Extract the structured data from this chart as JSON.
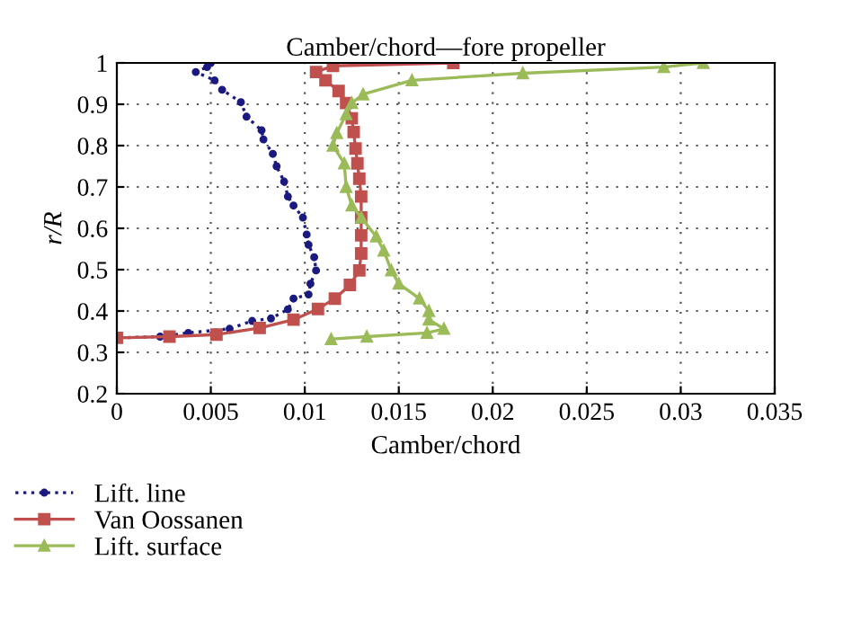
{
  "chart_data": {
    "type": "line",
    "title": "Camber/chord—fore propeller",
    "xlabel": "Camber/chord",
    "ylabel": "r/R",
    "xlim": [
      0,
      0.035
    ],
    "ylim": [
      0.2,
      1
    ],
    "xticks": [
      0,
      0.005,
      0.01,
      0.015,
      0.02,
      0.025,
      0.03,
      0.035
    ],
    "yticks": [
      0.2,
      0.3,
      0.4,
      0.5,
      0.6,
      0.7,
      0.8,
      0.9,
      1
    ],
    "grid": true,
    "legend": "bottom left",
    "series": [
      {
        "name": "Lift. line",
        "color": "#1a1a80",
        "marker": "circle",
        "line_style": "dotted",
        "x": [
          0.005,
          0.0048,
          0.0042,
          0.0052,
          0.0056,
          0.0066,
          0.0069,
          0.0077,
          0.0078,
          0.0083,
          0.0085,
          0.0089,
          0.0091,
          0.0094,
          0.0099,
          0.0101,
          0.0102,
          0.0105,
          0.0106,
          0.0103,
          0.0102,
          0.0094,
          0.0091,
          0.0082,
          0.0072,
          0.006,
          0.0038,
          0.0023,
          0
        ],
        "values": [
          1,
          0.99,
          0.978,
          0.958,
          0.935,
          0.905,
          0.87,
          0.837,
          0.815,
          0.78,
          0.75,
          0.713,
          0.677,
          0.655,
          0.626,
          0.585,
          0.56,
          0.53,
          0.498,
          0.466,
          0.44,
          0.43,
          0.404,
          0.382,
          0.376,
          0.357,
          0.347,
          0.338,
          0.335
        ]
      },
      {
        "name": "Van Oossanen",
        "color": "#c0504d",
        "marker": "square",
        "line_style": "solid",
        "x": [
          0.0179,
          0.0115,
          0.0106,
          0.0111,
          0.0118,
          0.0122,
          0.0125,
          0.0126,
          0.0127,
          0.0128,
          0.0129,
          0.013,
          0.013,
          0.013,
          0.013,
          0.0129,
          0.0124,
          0.0116,
          0.0107,
          0.0094,
          0.0076,
          0.0053,
          0.0028,
          0
        ],
        "values": [
          1,
          0.993,
          0.978,
          0.958,
          0.932,
          0.903,
          0.866,
          0.833,
          0.793,
          0.757,
          0.72,
          0.677,
          0.626,
          0.583,
          0.539,
          0.498,
          0.463,
          0.43,
          0.405,
          0.379,
          0.359,
          0.343,
          0.338,
          0.335
        ]
      },
      {
        "name": "Lift. surface",
        "color": "#9bbb59",
        "marker": "triangle",
        "line_style": "solid",
        "x": [
          0.0312,
          0.0291,
          0.0216,
          0.0157,
          0.0131,
          0.0125,
          0.0122,
          0.0117,
          0.0115,
          0.0121,
          0.0122,
          0.0125,
          0.013,
          0.0138,
          0.0142,
          0.0146,
          0.015,
          0.0161,
          0.0166,
          0.0166,
          0.0174,
          0.0165,
          0.0133,
          0.0114
        ],
        "values": [
          1,
          0.99,
          0.975,
          0.958,
          0.924,
          0.903,
          0.876,
          0.83,
          0.8,
          0.757,
          0.7,
          0.655,
          0.626,
          0.58,
          0.546,
          0.498,
          0.466,
          0.43,
          0.4,
          0.379,
          0.357,
          0.347,
          0.338,
          0.332
        ]
      }
    ]
  }
}
